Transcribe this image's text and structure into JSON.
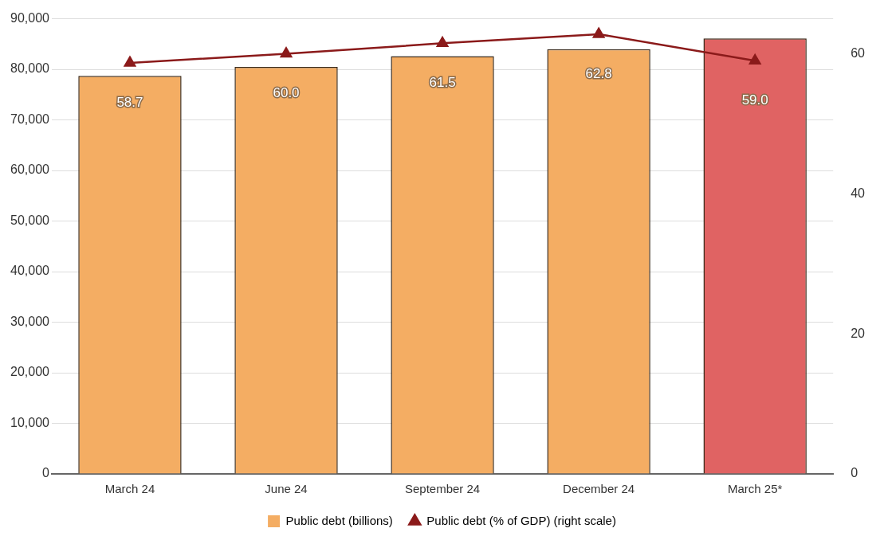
{
  "chart_data": {
    "type": "bar",
    "categories": [
      "March 24",
      "June 24",
      "September 24",
      "December 24",
      "March 25*"
    ],
    "series": [
      {
        "name": "Public debt (billions)",
        "color": "#f4ad63",
        "colors": [
          "#f4ad63",
          "#f4ad63",
          "#f4ad63",
          "#f4ad63",
          "#e06363"
        ],
        "values": [
          78700,
          80500,
          82600,
          84000,
          86100
        ]
      },
      {
        "name": "Public debt (% of GDP) (right scale)",
        "type": "line",
        "axis": "y2",
        "color": "#8b1a1a",
        "marker": "triangle",
        "values": [
          58.7,
          60.0,
          61.5,
          62.8,
          59.0
        ],
        "value_labels": [
          "58.7",
          "60.0",
          "61.5",
          "62.8",
          "59.0"
        ]
      }
    ],
    "ylim": [
      0,
      90000
    ],
    "yticks": [
      {
        "value": 0,
        "label": "0"
      },
      {
        "value": 10000,
        "label": "10,000"
      },
      {
        "value": 20000,
        "label": "20,000"
      },
      {
        "value": 30000,
        "label": "30,000"
      },
      {
        "value": 40000,
        "label": "40,000"
      },
      {
        "value": 50000,
        "label": "50,000"
      },
      {
        "value": 60000,
        "label": "60,000"
      },
      {
        "value": 70000,
        "label": "70,000"
      },
      {
        "value": 80000,
        "label": "80,000"
      },
      {
        "value": 90000,
        "label": "90,000"
      }
    ],
    "y2lim": [
      0,
      65
    ],
    "y2ticks": [
      0,
      20,
      40,
      60
    ],
    "grid": "y",
    "legend": "bottom"
  }
}
